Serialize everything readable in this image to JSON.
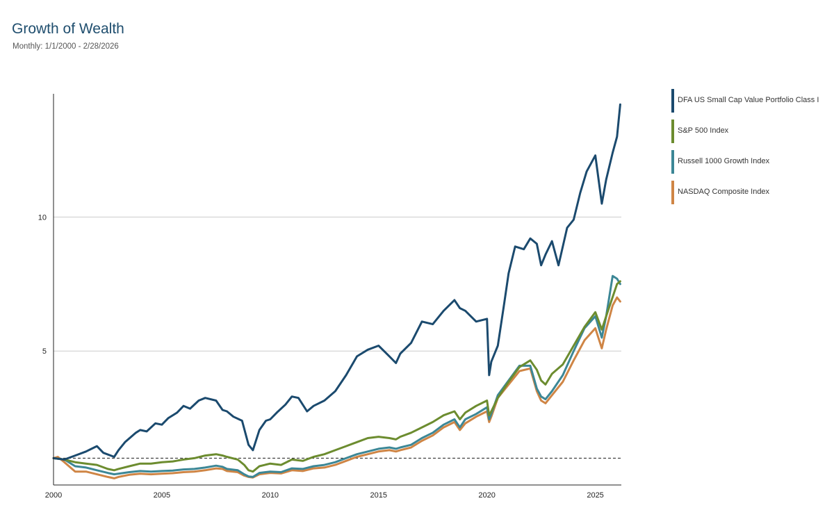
{
  "header": {
    "title": "Growth of Wealth",
    "subtitle": "Monthly: 1/1/2000 - 2/28/2026"
  },
  "chart_data": {
    "type": "line",
    "title": "Growth of Wealth",
    "subtitle": "Monthly: 1/1/2000 - 2/28/2026",
    "xlabel": "",
    "ylabel": "",
    "xlim": [
      2000,
      2026.2
    ],
    "ylim": [
      0,
      14.6
    ],
    "x_ticks": [
      2000,
      2005,
      2010,
      2015,
      2020,
      2025
    ],
    "y_ticks": [
      5,
      10
    ],
    "grid": "horizontal",
    "reference_line": 1,
    "legend_position": "right",
    "series": [
      {
        "name": "DFA US Small Cap Value Portfolio Class I",
        "color": "#1b4a6e",
        "x": [
          2000,
          2000.5,
          2001,
          2001.5,
          2002,
          2002.3,
          2002.8,
          2003,
          2003.3,
          2003.8,
          2004,
          2004.3,
          2004.7,
          2005,
          2005.3,
          2005.7,
          2006,
          2006.3,
          2006.7,
          2007,
          2007.5,
          2007.8,
          2008,
          2008.3,
          2008.7,
          2009,
          2009.2,
          2009.5,
          2009.8,
          2010,
          2010.3,
          2010.7,
          2011,
          2011.3,
          2011.7,
          2012,
          2012.5,
          2013,
          2013.5,
          2014,
          2014.5,
          2015,
          2015.5,
          2015.8,
          2016,
          2016.5,
          2017,
          2017.5,
          2018,
          2018.5,
          2018.75,
          2019,
          2019.5,
          2020,
          2020.1,
          2020.2,
          2020.5,
          2020.8,
          2021,
          2021.3,
          2021.7,
          2022,
          2022.3,
          2022.5,
          2022.7,
          2023,
          2023.3,
          2023.7,
          2024,
          2024.3,
          2024.6,
          2025,
          2025.3,
          2025.5,
          2025.8,
          2026,
          2026.15
        ],
        "values": [
          1.0,
          0.95,
          1.1,
          1.25,
          1.45,
          1.2,
          1.05,
          1.3,
          1.6,
          1.95,
          2.05,
          2.0,
          2.3,
          2.25,
          2.5,
          2.7,
          2.95,
          2.85,
          3.15,
          3.25,
          3.15,
          2.8,
          2.75,
          2.55,
          2.4,
          1.5,
          1.3,
          2.05,
          2.4,
          2.45,
          2.7,
          3.0,
          3.3,
          3.25,
          2.75,
          2.95,
          3.15,
          3.5,
          4.1,
          4.8,
          5.05,
          5.2,
          4.8,
          4.55,
          4.9,
          5.3,
          6.1,
          6.0,
          6.5,
          6.9,
          6.6,
          6.5,
          6.1,
          6.2,
          4.1,
          4.6,
          5.2,
          6.8,
          7.9,
          8.9,
          8.8,
          9.2,
          9.0,
          8.2,
          8.6,
          9.1,
          8.2,
          9.6,
          9.9,
          10.9,
          11.7,
          12.3,
          10.5,
          11.4,
          12.4,
          13.0,
          14.2
        ]
      },
      {
        "name": "S&P 500 Index",
        "color": "#6c8c2f",
        "x": [
          2000,
          2000.5,
          2001,
          2001.5,
          2002,
          2002.5,
          2002.8,
          2003,
          2003.5,
          2004,
          2004.5,
          2005,
          2005.5,
          2006,
          2006.5,
          2007,
          2007.5,
          2007.8,
          2008,
          2008.5,
          2008.8,
          2009,
          2009.2,
          2009.5,
          2010,
          2010.5,
          2011,
          2011.5,
          2012,
          2012.5,
          2013,
          2013.5,
          2014,
          2014.5,
          2015,
          2015.5,
          2015.8,
          2016,
          2016.5,
          2017,
          2017.5,
          2018,
          2018.5,
          2018.75,
          2019,
          2019.5,
          2020,
          2020.1,
          2020.2,
          2020.5,
          2021,
          2021.5,
          2022,
          2022.3,
          2022.5,
          2022.7,
          2023,
          2023.5,
          2024,
          2024.5,
          2025,
          2025.3,
          2025.5,
          2026,
          2026.15
        ],
        "values": [
          1.0,
          0.95,
          0.85,
          0.8,
          0.75,
          0.6,
          0.55,
          0.6,
          0.7,
          0.8,
          0.8,
          0.85,
          0.88,
          0.95,
          1.0,
          1.1,
          1.15,
          1.1,
          1.05,
          0.95,
          0.75,
          0.55,
          0.5,
          0.7,
          0.8,
          0.75,
          0.95,
          0.9,
          1.05,
          1.15,
          1.3,
          1.45,
          1.6,
          1.75,
          1.8,
          1.75,
          1.7,
          1.8,
          1.95,
          2.15,
          2.35,
          2.6,
          2.75,
          2.45,
          2.7,
          2.95,
          3.15,
          2.6,
          2.75,
          3.25,
          3.85,
          4.4,
          4.65,
          4.3,
          3.9,
          3.75,
          4.15,
          4.5,
          5.2,
          5.9,
          6.45,
          5.8,
          6.3,
          7.5,
          7.6
        ]
      },
      {
        "name": "Russell 1000 Growth Index",
        "color": "#3c8796",
        "x": [
          2000,
          2000.5,
          2001,
          2001.5,
          2002,
          2002.5,
          2002.8,
          2003,
          2003.5,
          2004,
          2004.5,
          2005,
          2005.5,
          2006,
          2006.5,
          2007,
          2007.5,
          2007.8,
          2008,
          2008.5,
          2008.8,
          2009,
          2009.2,
          2009.5,
          2010,
          2010.5,
          2011,
          2011.5,
          2012,
          2012.5,
          2013,
          2013.5,
          2014,
          2014.5,
          2015,
          2015.5,
          2015.8,
          2016,
          2016.5,
          2017,
          2017.5,
          2018,
          2018.5,
          2018.75,
          2019,
          2019.5,
          2020,
          2020.1,
          2020.2,
          2020.5,
          2021,
          2021.5,
          2022,
          2022.3,
          2022.5,
          2022.7,
          2023,
          2023.5,
          2024,
          2024.5,
          2025,
          2025.3,
          2025.5,
          2025.8,
          2026,
          2026.15
        ],
        "values": [
          1.0,
          0.95,
          0.7,
          0.65,
          0.55,
          0.45,
          0.4,
          0.42,
          0.48,
          0.52,
          0.5,
          0.52,
          0.54,
          0.58,
          0.6,
          0.65,
          0.72,
          0.68,
          0.6,
          0.55,
          0.4,
          0.32,
          0.3,
          0.45,
          0.5,
          0.48,
          0.62,
          0.6,
          0.7,
          0.75,
          0.85,
          1.0,
          1.15,
          1.25,
          1.35,
          1.4,
          1.35,
          1.4,
          1.5,
          1.75,
          1.95,
          2.25,
          2.45,
          2.15,
          2.45,
          2.65,
          2.9,
          2.45,
          2.65,
          3.35,
          3.9,
          4.45,
          4.45,
          3.6,
          3.3,
          3.2,
          3.5,
          4.1,
          5.0,
          5.85,
          6.3,
          5.5,
          6.3,
          7.8,
          7.7,
          7.5
        ]
      },
      {
        "name": "NASDAQ Composite Index",
        "color": "#cf8545",
        "x": [
          2000,
          2000.2,
          2000.5,
          2001,
          2001.5,
          2002,
          2002.5,
          2002.8,
          2003,
          2003.5,
          2004,
          2004.5,
          2005,
          2005.5,
          2006,
          2006.5,
          2007,
          2007.5,
          2007.8,
          2008,
          2008.5,
          2008.8,
          2009,
          2009.2,
          2009.5,
          2010,
          2010.5,
          2011,
          2011.5,
          2012,
          2012.5,
          2013,
          2013.5,
          2014,
          2014.5,
          2015,
          2015.5,
          2015.8,
          2016,
          2016.5,
          2017,
          2017.5,
          2018,
          2018.5,
          2018.75,
          2019,
          2019.5,
          2020,
          2020.1,
          2020.2,
          2020.5,
          2021,
          2021.5,
          2022,
          2022.3,
          2022.5,
          2022.7,
          2023,
          2023.5,
          2024,
          2024.5,
          2025,
          2025.3,
          2025.5,
          2025.8,
          2026,
          2026.15
        ],
        "values": [
          1.0,
          1.05,
          0.85,
          0.5,
          0.5,
          0.4,
          0.3,
          0.25,
          0.3,
          0.38,
          0.42,
          0.4,
          0.42,
          0.44,
          0.48,
          0.5,
          0.55,
          0.62,
          0.6,
          0.52,
          0.48,
          0.35,
          0.3,
          0.28,
          0.4,
          0.45,
          0.43,
          0.55,
          0.52,
          0.62,
          0.65,
          0.75,
          0.9,
          1.05,
          1.15,
          1.25,
          1.3,
          1.25,
          1.3,
          1.4,
          1.65,
          1.85,
          2.15,
          2.35,
          2.05,
          2.3,
          2.55,
          2.75,
          2.35,
          2.55,
          3.25,
          3.75,
          4.25,
          4.35,
          3.5,
          3.15,
          3.05,
          3.35,
          3.85,
          4.65,
          5.4,
          5.85,
          5.1,
          5.8,
          6.7,
          7.0,
          6.85
        ]
      }
    ]
  }
}
